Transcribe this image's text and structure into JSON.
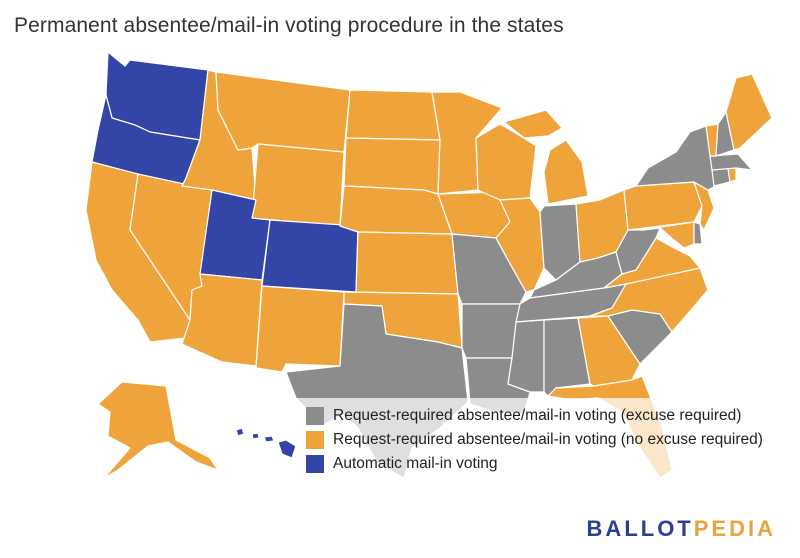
{
  "title": "Permanent absentee/mail-in voting procedure in the states",
  "colors": {
    "excuse_required": "#8c8c8c",
    "no_excuse_required": "#eea43a",
    "automatic": "#3346a8",
    "background": "#ffffff"
  },
  "legend": [
    {
      "label": "Request-required absentee/mail-in voting (excuse required)",
      "color": "#8c8c8c"
    },
    {
      "label": "Request-required absentee/mail-in voting (no excuse required)",
      "color": "#eea43a"
    },
    {
      "label": "Automatic mail-in voting",
      "color": "#3346a8"
    }
  ],
  "categories": {
    "excuse_required": [
      "Texas",
      "Louisiana",
      "Arkansas",
      "Missouri",
      "Mississippi",
      "Alabama",
      "Tennessee",
      "Kentucky",
      "Indiana",
      "West Virginia",
      "South Carolina",
      "New York",
      "Connecticut",
      "Massachusetts",
      "New Hampshire",
      "Delaware"
    ],
    "no_excuse_required": [
      "California",
      "Nevada",
      "Arizona",
      "New Mexico",
      "Idaho",
      "Montana",
      "Wyoming",
      "North Dakota",
      "South Dakota",
      "Nebraska",
      "Kansas",
      "Oklahoma",
      "Minnesota",
      "Iowa",
      "Wisconsin",
      "Illinois",
      "Michigan",
      "Ohio",
      "Pennsylvania",
      "New Jersey",
      "Maryland",
      "Virginia",
      "North Carolina",
      "Georgia",
      "Florida",
      "Maine",
      "Vermont",
      "Rhode Island",
      "Alaska"
    ],
    "automatic": [
      "Washington",
      "Oregon",
      "Utah",
      "Colorado",
      "Hawaii"
    ]
  },
  "brand": {
    "part1": "BALLOT",
    "part2": "PEDIA"
  }
}
